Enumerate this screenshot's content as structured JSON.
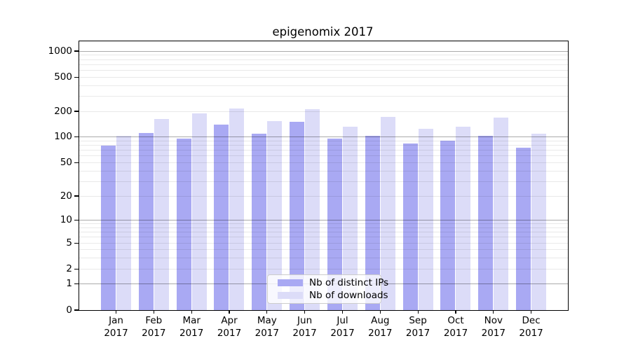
{
  "chart_data": {
    "type": "bar",
    "title": "epigenomix 2017",
    "categories": [
      "Jan",
      "Feb",
      "Mar",
      "Apr",
      "May",
      "Jun",
      "Jul",
      "Aug",
      "Sep",
      "Oct",
      "Nov",
      "Dec"
    ],
    "category_year": "2017",
    "series": [
      {
        "name": "Nb of distinct IPs",
        "color": "#a9a9f3",
        "values": [
          80,
          111,
          96,
          140,
          109,
          151,
          97,
          104,
          85,
          90,
          104,
          75
        ]
      },
      {
        "name": "Nb of downloads",
        "color": "#dcdcf8",
        "values": [
          103,
          163,
          189,
          215,
          155,
          212,
          133,
          171,
          125,
          132,
          169,
          109
        ]
      }
    ],
    "xlabel": "",
    "ylabel": "",
    "y_scale": "log1p",
    "ylim": [
      0,
      1300
    ],
    "y_tick_labels": [
      "0",
      "1",
      "2",
      "5",
      "10",
      "20",
      "50",
      "100",
      "200",
      "500",
      "1000"
    ],
    "grid": "both",
    "grid_major_values": [
      1,
      10,
      100,
      1000
    ],
    "grid_minor_values": [
      2,
      3,
      4,
      5,
      6,
      7,
      8,
      9,
      20,
      30,
      40,
      50,
      60,
      70,
      80,
      90,
      200,
      300,
      400,
      500,
      600,
      700,
      800,
      900
    ],
    "legend": {
      "position": "lower center",
      "entries": [
        "Nb of distinct IPs",
        "Nb of downloads"
      ]
    },
    "axis_color": "#000000",
    "background_color": "#ffffff"
  }
}
